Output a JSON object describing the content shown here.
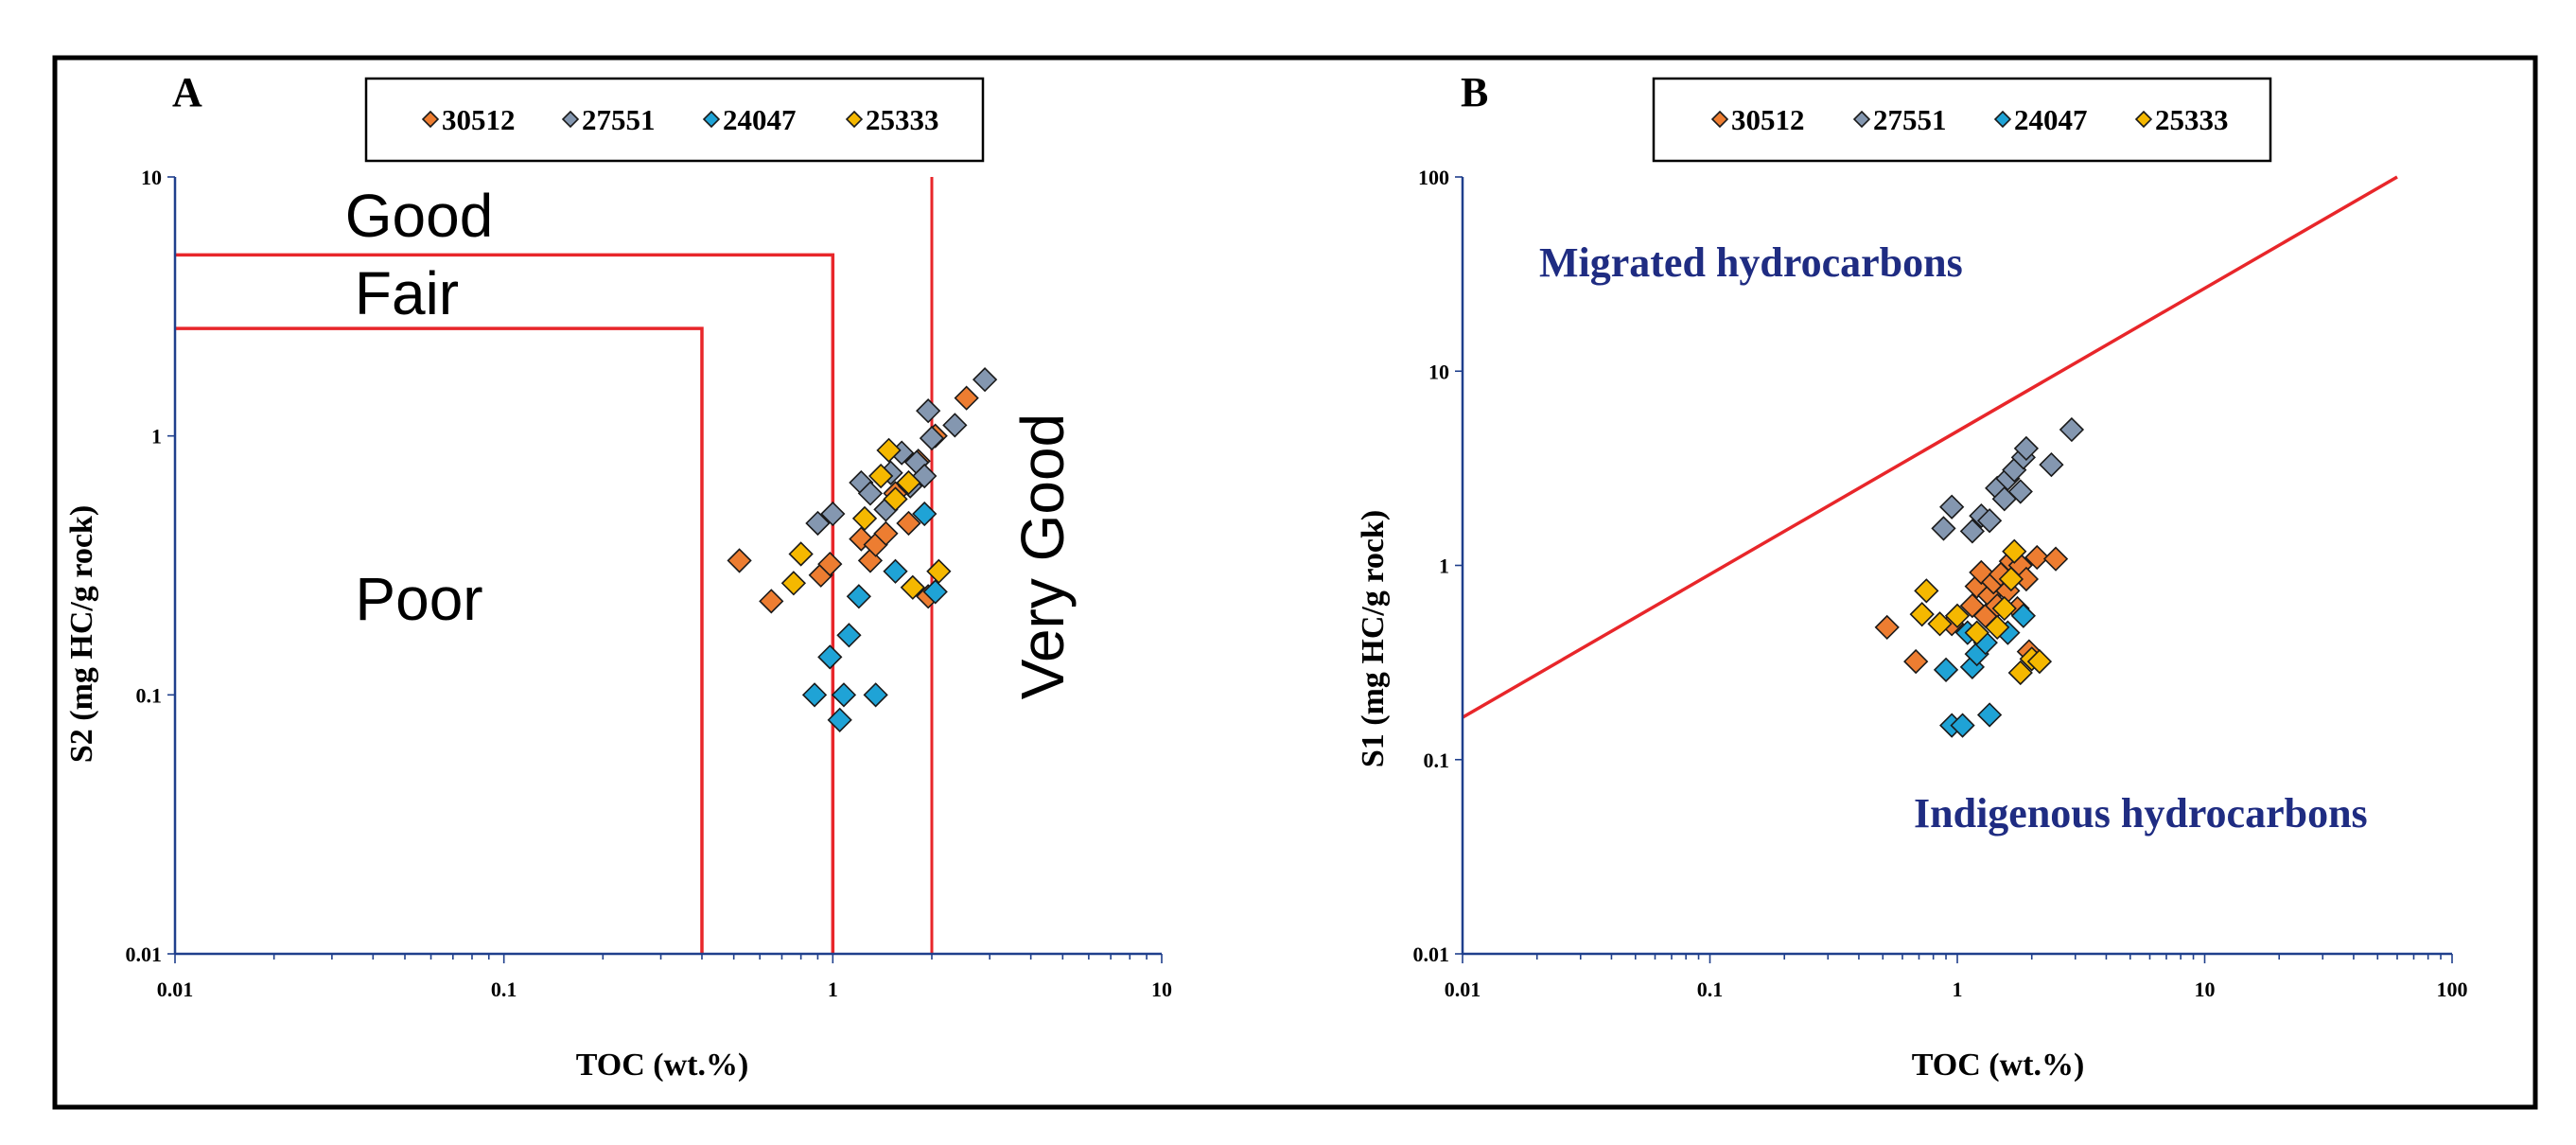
{
  "colors": {
    "series": [
      "#ED7D31",
      "#8497B0",
      "#1FA3D6",
      "#F5B800"
    ],
    "classification_line": "#E8262A",
    "region_text": "#1F2C82",
    "axis": "#1F3F8C",
    "frame": "#000000"
  },
  "chart_data": [
    {
      "type": "scatter",
      "panel": "A",
      "xlabel": "TOC (wt.%)",
      "ylabel": "S2 (mg HC/g rock)",
      "xscale": "log",
      "yscale": "log",
      "xlim": [
        0.01,
        10
      ],
      "ylim": [
        0.01,
        10
      ],
      "xticks": [
        "0.01",
        "0.1",
        "1",
        "10"
      ],
      "yticks": [
        "0.01",
        "0.1",
        "1",
        "10"
      ],
      "legend": [
        "30512",
        "27551",
        "24047",
        "25333"
      ],
      "zones": {
        "poor": "Poor",
        "fair": "Fair",
        "good": "Good",
        "very_good": "Very Good"
      },
      "series": [
        {
          "name": "30512",
          "points": [
            [
              0.52,
              0.33
            ],
            [
              0.65,
              0.23
            ],
            [
              0.92,
              0.29
            ],
            [
              0.98,
              0.32
            ],
            [
              1.22,
              0.4
            ],
            [
              1.3,
              0.33
            ],
            [
              1.35,
              0.38
            ],
            [
              1.45,
              0.42
            ],
            [
              1.55,
              0.6
            ],
            [
              1.7,
              0.46
            ],
            [
              1.82,
              0.8
            ],
            [
              1.95,
              0.24
            ],
            [
              2.05,
              1.0
            ],
            [
              2.55,
              1.4
            ]
          ]
        },
        {
          "name": "27551",
          "points": [
            [
              0.9,
              0.46
            ],
            [
              1.0,
              0.5
            ],
            [
              1.22,
              0.66
            ],
            [
              1.3,
              0.6
            ],
            [
              1.45,
              0.52
            ],
            [
              1.5,
              0.72
            ],
            [
              1.62,
              0.86
            ],
            [
              1.72,
              0.64
            ],
            [
              1.8,
              0.79
            ],
            [
              1.9,
              0.7
            ],
            [
              1.95,
              1.25
            ],
            [
              2.0,
              0.98
            ],
            [
              2.35,
              1.1
            ],
            [
              2.9,
              1.65
            ]
          ]
        },
        {
          "name": "24047",
          "points": [
            [
              0.88,
              0.1
            ],
            [
              0.98,
              0.14
            ],
            [
              1.05,
              0.08
            ],
            [
              1.08,
              0.1
            ],
            [
              1.12,
              0.17
            ],
            [
              1.2,
              0.24
            ],
            [
              1.35,
              0.1
            ],
            [
              1.55,
              0.3
            ],
            [
              1.9,
              0.5
            ],
            [
              2.05,
              0.25
            ]
          ]
        },
        {
          "name": "25333",
          "points": [
            [
              0.76,
              0.27
            ],
            [
              0.8,
              0.35
            ],
            [
              1.25,
              0.48
            ],
            [
              1.4,
              0.7
            ],
            [
              1.48,
              0.88
            ],
            [
              1.55,
              0.57
            ],
            [
              1.7,
              0.66
            ],
            [
              1.75,
              0.26
            ],
            [
              2.1,
              0.3
            ]
          ]
        }
      ]
    },
    {
      "type": "scatter",
      "panel": "B",
      "xlabel": "TOC (wt.%)",
      "ylabel": "S1 (mg HC/g rock)",
      "xscale": "log",
      "yscale": "log",
      "xlim": [
        0.01,
        100
      ],
      "ylim": [
        0.01,
        100
      ],
      "xticks": [
        "0.01",
        "0.1",
        "1",
        "10",
        "100"
      ],
      "yticks": [
        "0.01",
        "0.1",
        "1",
        "10",
        "100"
      ],
      "legend": [
        "30512",
        "27551",
        "24047",
        "25333"
      ],
      "divider_line": {
        "from": [
          0.01,
          0.165
        ],
        "to": [
          60,
          100
        ]
      },
      "regions": {
        "upper": "Migrated hydrocarbons",
        "lower": "Indigenous hydrocarbons"
      },
      "series": [
        {
          "name": "30512",
          "points": [
            [
              0.52,
              0.48
            ],
            [
              0.68,
              0.32
            ],
            [
              0.95,
              0.5
            ],
            [
              1.15,
              0.62
            ],
            [
              1.2,
              0.78
            ],
            [
              1.25,
              0.92
            ],
            [
              1.3,
              0.55
            ],
            [
              1.35,
              0.7
            ],
            [
              1.4,
              0.82
            ],
            [
              1.45,
              0.62
            ],
            [
              1.5,
              0.9
            ],
            [
              1.6,
              0.74
            ],
            [
              1.65,
              1.05
            ],
            [
              1.75,
              0.6
            ],
            [
              1.8,
              1.0
            ],
            [
              1.9,
              0.85
            ],
            [
              2.1,
              1.1
            ],
            [
              2.5,
              1.08
            ],
            [
              1.95,
              0.36
            ]
          ]
        },
        {
          "name": "27551",
          "points": [
            [
              0.88,
              1.55
            ],
            [
              0.95,
              2.0
            ],
            [
              1.15,
              1.5
            ],
            [
              1.25,
              1.8
            ],
            [
              1.35,
              1.7
            ],
            [
              1.45,
              2.5
            ],
            [
              1.55,
              2.2
            ],
            [
              1.6,
              2.8
            ],
            [
              1.7,
              3.1
            ],
            [
              1.8,
              2.4
            ],
            [
              1.85,
              3.6
            ],
            [
              1.9,
              4.0
            ],
            [
              2.4,
              3.3
            ],
            [
              2.9,
              5.0
            ]
          ]
        },
        {
          "name": "24047",
          "points": [
            [
              0.9,
              0.29
            ],
            [
              0.95,
              0.15
            ],
            [
              1.05,
              0.15
            ],
            [
              1.1,
              0.45
            ],
            [
              1.15,
              0.3
            ],
            [
              1.2,
              0.35
            ],
            [
              1.3,
              0.4
            ],
            [
              1.35,
              0.17
            ],
            [
              1.6,
              0.45
            ],
            [
              1.85,
              0.55
            ]
          ]
        },
        {
          "name": "25333",
          "points": [
            [
              0.72,
              0.56
            ],
            [
              0.75,
              0.74
            ],
            [
              0.85,
              0.5
            ],
            [
              1.0,
              0.55
            ],
            [
              1.2,
              0.45
            ],
            [
              1.45,
              0.48
            ],
            [
              1.55,
              0.6
            ],
            [
              1.65,
              0.85
            ],
            [
              1.7,
              1.18
            ],
            [
              1.8,
              0.28
            ],
            [
              2.0,
              0.33
            ],
            [
              2.15,
              0.32
            ]
          ]
        }
      ]
    }
  ]
}
